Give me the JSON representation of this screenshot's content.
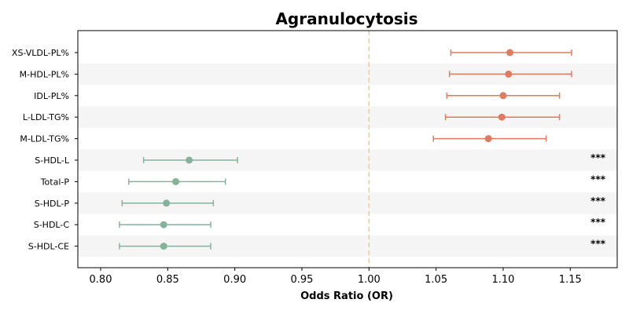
{
  "chart_data": {
    "type": "forest",
    "title": "Agranulocytosis",
    "xlabel": "Odds Ratio (OR)",
    "ylabel": "",
    "xlim": [
      0.783,
      1.185
    ],
    "xticks": [
      "0.80",
      "0.85",
      "0.90",
      "0.95",
      "1.00",
      "1.05",
      "1.10",
      "1.15"
    ],
    "reference_line": 1.0,
    "grid": false,
    "colors": {
      "positive": "#e07b5f",
      "negative": "#85b39a",
      "reference": "#f5c98a",
      "band": "#f5f5f5"
    },
    "rows": [
      {
        "label": "XS-VLDL-PL%",
        "or": 1.105,
        "lower": 1.061,
        "upper": 1.151,
        "sig": ""
      },
      {
        "label": "M-HDL-PL%",
        "or": 1.104,
        "lower": 1.06,
        "upper": 1.151,
        "sig": ""
      },
      {
        "label": "IDL-PL%",
        "or": 1.1,
        "lower": 1.058,
        "upper": 1.142,
        "sig": ""
      },
      {
        "label": "L-LDL-TG%",
        "or": 1.099,
        "lower": 1.057,
        "upper": 1.142,
        "sig": ""
      },
      {
        "label": "M-LDL-TG%",
        "or": 1.089,
        "lower": 1.048,
        "upper": 1.132,
        "sig": ""
      },
      {
        "label": "S-HDL-L",
        "or": 0.866,
        "lower": 0.832,
        "upper": 0.902,
        "sig": "***"
      },
      {
        "label": "Total-P",
        "or": 0.856,
        "lower": 0.821,
        "upper": 0.893,
        "sig": "***"
      },
      {
        "label": "S-HDL-P",
        "or": 0.849,
        "lower": 0.816,
        "upper": 0.884,
        "sig": "***"
      },
      {
        "label": "S-HDL-C",
        "or": 0.847,
        "lower": 0.814,
        "upper": 0.882,
        "sig": "***"
      },
      {
        "label": "S-HDL-CE",
        "or": 0.847,
        "lower": 0.814,
        "upper": 0.882,
        "sig": "***"
      }
    ]
  }
}
